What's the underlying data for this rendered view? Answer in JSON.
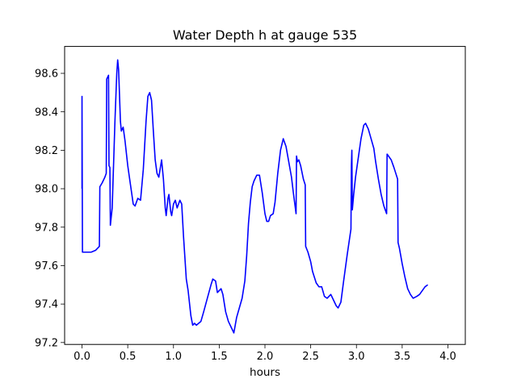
{
  "chart_data": {
    "type": "line",
    "title": "Water Depth h at gauge 535",
    "xlabel": "hours",
    "ylabel": "",
    "xlim": [
      -0.19,
      4.19
    ],
    "ylim": [
      97.19,
      98.74
    ],
    "xticks": [
      0.0,
      0.5,
      1.0,
      1.5,
      2.0,
      2.5,
      3.0,
      3.5,
      4.0
    ],
    "xtick_labels": [
      "0.0",
      "0.5",
      "1.0",
      "1.5",
      "2.0",
      "2.5",
      "3.0",
      "3.5",
      "4.0"
    ],
    "yticks": [
      97.2,
      97.4,
      97.6,
      97.8,
      98.0,
      98.2,
      98.4,
      98.6
    ],
    "ytick_labels": [
      "97.2",
      "97.4",
      "97.6",
      "97.8",
      "98.0",
      "98.2",
      "98.4",
      "98.6"
    ],
    "grid": false,
    "series": [
      {
        "color": "#0000ff",
        "points": [
          [
            0.0,
            98.0
          ],
          [
            0.0,
            98.48
          ],
          [
            0.005,
            97.67
          ],
          [
            0.05,
            97.67
          ],
          [
            0.1,
            97.67
          ],
          [
            0.15,
            97.68
          ],
          [
            0.19,
            97.7
          ],
          [
            0.195,
            98.01
          ],
          [
            0.22,
            98.03
          ],
          [
            0.25,
            98.06
          ],
          [
            0.265,
            98.08
          ],
          [
            0.27,
            98.57
          ],
          [
            0.29,
            98.59
          ],
          [
            0.295,
            98.12
          ],
          [
            0.305,
            98.11
          ],
          [
            0.31,
            97.81
          ],
          [
            0.33,
            97.9
          ],
          [
            0.36,
            98.35
          ],
          [
            0.38,
            98.6
          ],
          [
            0.39,
            98.67
          ],
          [
            0.4,
            98.62
          ],
          [
            0.42,
            98.35
          ],
          [
            0.43,
            98.3
          ],
          [
            0.45,
            98.32
          ],
          [
            0.47,
            98.25
          ],
          [
            0.5,
            98.12
          ],
          [
            0.53,
            98.02
          ],
          [
            0.56,
            97.92
          ],
          [
            0.58,
            97.91
          ],
          [
            0.61,
            97.95
          ],
          [
            0.64,
            97.94
          ],
          [
            0.67,
            98.1
          ],
          [
            0.7,
            98.35
          ],
          [
            0.72,
            98.48
          ],
          [
            0.74,
            98.5
          ],
          [
            0.76,
            98.46
          ],
          [
            0.78,
            98.3
          ],
          [
            0.8,
            98.15
          ],
          [
            0.82,
            98.08
          ],
          [
            0.84,
            98.06
          ],
          [
            0.87,
            98.15
          ],
          [
            0.89,
            98.05
          ],
          [
            0.91,
            97.9
          ],
          [
            0.92,
            97.86
          ],
          [
            0.94,
            97.95
          ],
          [
            0.95,
            97.97
          ],
          [
            0.97,
            97.88
          ],
          [
            0.98,
            97.86
          ],
          [
            1.0,
            97.92
          ],
          [
            1.02,
            97.94
          ],
          [
            1.04,
            97.9
          ],
          [
            1.07,
            97.94
          ],
          [
            1.09,
            97.92
          ],
          [
            1.11,
            97.75
          ],
          [
            1.14,
            97.53
          ],
          [
            1.16,
            97.47
          ],
          [
            1.19,
            97.34
          ],
          [
            1.21,
            97.29
          ],
          [
            1.23,
            97.3
          ],
          [
            1.25,
            97.29
          ],
          [
            1.3,
            97.31
          ],
          [
            1.33,
            97.36
          ],
          [
            1.37,
            97.43
          ],
          [
            1.41,
            97.5
          ],
          [
            1.43,
            97.53
          ],
          [
            1.46,
            97.52
          ],
          [
            1.48,
            97.46
          ],
          [
            1.52,
            97.48
          ],
          [
            1.54,
            97.45
          ],
          [
            1.57,
            97.36
          ],
          [
            1.6,
            97.31
          ],
          [
            1.63,
            97.28
          ],
          [
            1.66,
            97.25
          ],
          [
            1.69,
            97.33
          ],
          [
            1.72,
            97.38
          ],
          [
            1.75,
            97.43
          ],
          [
            1.78,
            97.52
          ],
          [
            1.8,
            97.65
          ],
          [
            1.82,
            97.82
          ],
          [
            1.84,
            97.93
          ],
          [
            1.86,
            98.01
          ],
          [
            1.88,
            98.04
          ],
          [
            1.91,
            98.07
          ],
          [
            1.94,
            98.07
          ],
          [
            1.97,
            97.98
          ],
          [
            2.0,
            97.87
          ],
          [
            2.02,
            97.83
          ],
          [
            2.04,
            97.83
          ],
          [
            2.06,
            97.86
          ],
          [
            2.09,
            97.87
          ],
          [
            2.11,
            97.93
          ],
          [
            2.14,
            98.08
          ],
          [
            2.17,
            98.2
          ],
          [
            2.2,
            98.26
          ],
          [
            2.23,
            98.22
          ],
          [
            2.26,
            98.14
          ],
          [
            2.29,
            98.06
          ],
          [
            2.31,
            97.98
          ],
          [
            2.34,
            97.87
          ],
          [
            2.345,
            98.17
          ],
          [
            2.355,
            98.14
          ],
          [
            2.37,
            98.15
          ],
          [
            2.39,
            98.12
          ],
          [
            2.42,
            98.05
          ],
          [
            2.44,
            98.02
          ],
          [
            2.445,
            97.7
          ],
          [
            2.47,
            97.67
          ],
          [
            2.5,
            97.62
          ],
          [
            2.52,
            97.57
          ],
          [
            2.54,
            97.54
          ],
          [
            2.56,
            97.51
          ],
          [
            2.59,
            97.49
          ],
          [
            2.62,
            97.49
          ],
          [
            2.65,
            97.44
          ],
          [
            2.68,
            97.43
          ],
          [
            2.72,
            97.45
          ],
          [
            2.75,
            97.42
          ],
          [
            2.78,
            97.39
          ],
          [
            2.8,
            97.38
          ],
          [
            2.83,
            97.41
          ],
          [
            2.86,
            97.52
          ],
          [
            2.9,
            97.66
          ],
          [
            2.94,
            97.79
          ],
          [
            2.945,
            98.12
          ],
          [
            2.95,
            98.2
          ],
          [
            2.955,
            97.89
          ],
          [
            2.97,
            97.97
          ],
          [
            2.99,
            98.06
          ],
          [
            3.02,
            98.16
          ],
          [
            3.05,
            98.26
          ],
          [
            3.08,
            98.33
          ],
          [
            3.1,
            98.34
          ],
          [
            3.13,
            98.31
          ],
          [
            3.16,
            98.26
          ],
          [
            3.19,
            98.21
          ],
          [
            3.21,
            98.14
          ],
          [
            3.24,
            98.05
          ],
          [
            3.27,
            97.97
          ],
          [
            3.3,
            97.91
          ],
          [
            3.33,
            97.87
          ],
          [
            3.335,
            98.18
          ],
          [
            3.35,
            98.17
          ],
          [
            3.38,
            98.15
          ],
          [
            3.41,
            98.11
          ],
          [
            3.45,
            98.05
          ],
          [
            3.455,
            97.72
          ],
          [
            3.47,
            97.69
          ],
          [
            3.5,
            97.61
          ],
          [
            3.53,
            97.54
          ],
          [
            3.56,
            97.48
          ],
          [
            3.59,
            97.45
          ],
          [
            3.62,
            97.43
          ],
          [
            3.66,
            97.44
          ],
          [
            3.69,
            97.45
          ],
          [
            3.72,
            97.47
          ],
          [
            3.75,
            97.49
          ],
          [
            3.78,
            97.5
          ]
        ]
      }
    ]
  }
}
